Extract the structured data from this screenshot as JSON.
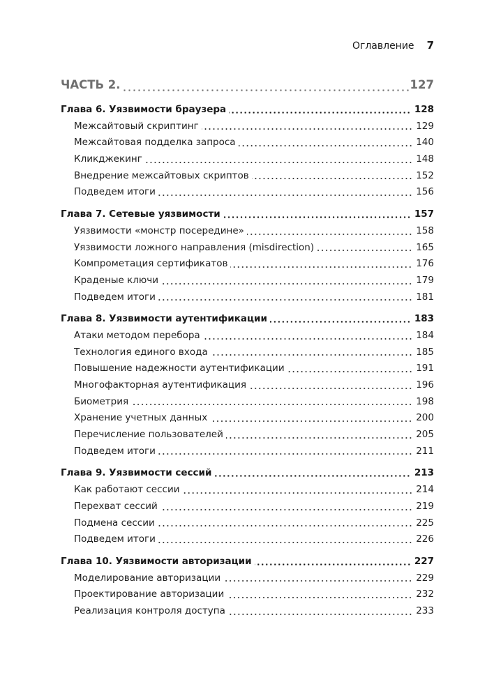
{
  "header": {
    "section": "Оглавление",
    "page": "7"
  },
  "part": {
    "title": "ЧАСТЬ 2.",
    "page": "127"
  },
  "chapters": [
    {
      "title": "Глава 6. Уязвимости браузера",
      "page": "128",
      "sections": [
        {
          "title": "Межсайтовый скриптинг",
          "page": "129"
        },
        {
          "title": "Межсайтовая подделка запроса",
          "page": "140"
        },
        {
          "title": "Кликджекинг",
          "page": "148"
        },
        {
          "title": "Внедрение межсайтовых скриптов",
          "page": "152"
        },
        {
          "title": "Подведем итоги",
          "page": "156"
        }
      ]
    },
    {
      "title": "Глава 7. Сетевые уязвимости",
      "page": "157",
      "sections": [
        {
          "title": "Уязвимости «монстр посередине»",
          "page": "158"
        },
        {
          "title": "Уязвимости ложного направления (misdirection)",
          "page": "165"
        },
        {
          "title": "Компрометация сертификатов",
          "page": "176"
        },
        {
          "title": "Краденые ключи",
          "page": "179"
        },
        {
          "title": "Подведем итоги",
          "page": "181"
        }
      ]
    },
    {
      "title": "Глава 8. Уязвимости аутентификации",
      "page": "183",
      "sections": [
        {
          "title": "Атаки методом перебора",
          "page": "184"
        },
        {
          "title": "Технология единого входа",
          "page": "185"
        },
        {
          "title": "Повышение надежности аутентификации",
          "page": "191"
        },
        {
          "title": "Многофакторная аутентификация",
          "page": "196"
        },
        {
          "title": "Биометрия",
          "page": "198"
        },
        {
          "title": "Хранение учетных данных",
          "page": "200"
        },
        {
          "title": "Перечисление пользователей",
          "page": "205"
        },
        {
          "title": "Подведем итоги",
          "page": "211"
        }
      ]
    },
    {
      "title": "Глава 9. Уязвимости сессий",
      "page": "213",
      "sections": [
        {
          "title": "Как работают сессии",
          "page": "214"
        },
        {
          "title": "Перехват сессий",
          "page": "219"
        },
        {
          "title": "Подмена сессии",
          "page": "225"
        },
        {
          "title": "Подведем итоги",
          "page": "226"
        }
      ]
    },
    {
      "title": "Глава 10. Уязвимости авторизации",
      "page": "227",
      "sections": [
        {
          "title": "Моделирование авторизации",
          "page": "229"
        },
        {
          "title": "Проектирование авторизации",
          "page": "232"
        },
        {
          "title": "Реализация контроля доступа",
          "page": "233"
        }
      ]
    }
  ]
}
